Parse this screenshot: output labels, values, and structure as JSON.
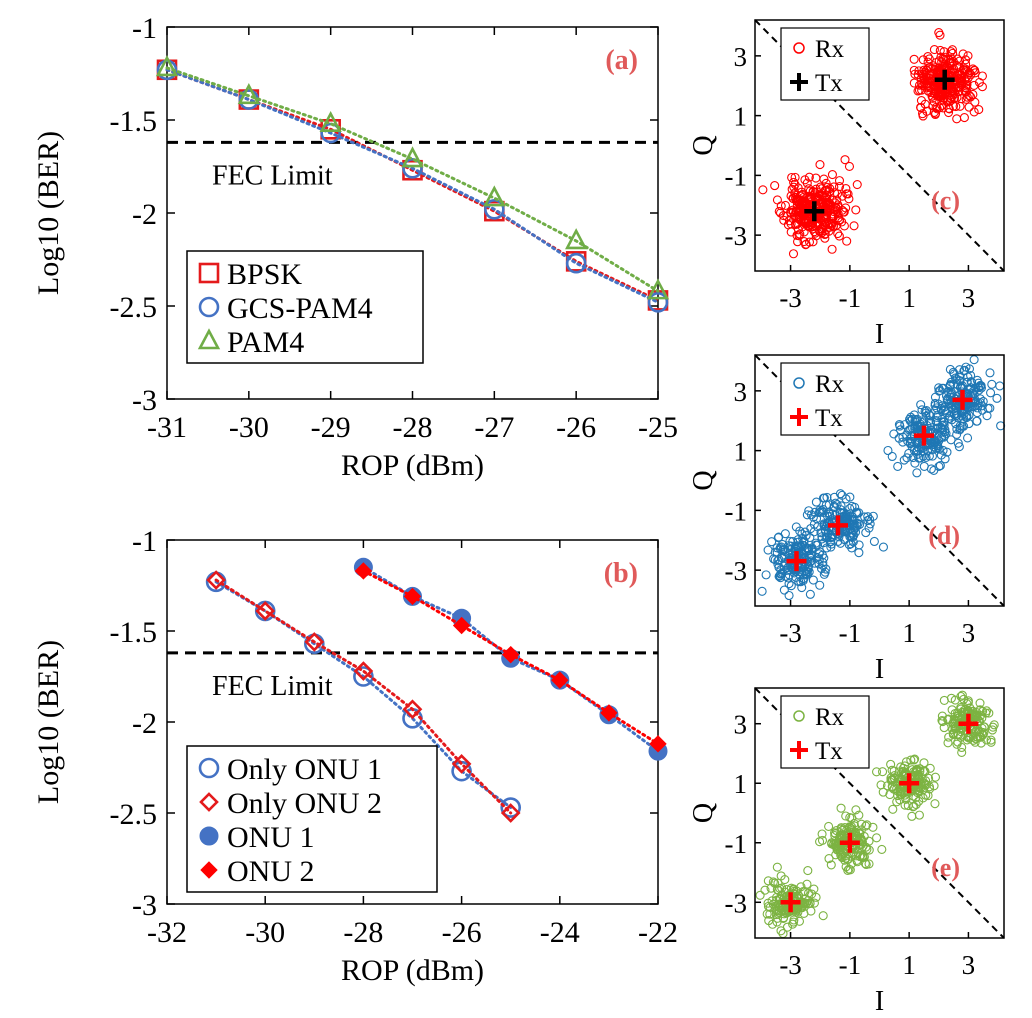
{
  "chart_data": [
    {
      "panel": "a",
      "type": "line",
      "panel_label": "(a)",
      "xlabel": "ROP (dBm)",
      "ylabel": "Log10 (BER)",
      "xlim": [
        -31,
        -25
      ],
      "ylim": [
        -3,
        -1
      ],
      "xticks": [
        "-31",
        "-30",
        "-29",
        "-28",
        "-27",
        "-26",
        "-25"
      ],
      "yticks": [
        "-1",
        "-1.5",
        "-2",
        "-2.5",
        "-3"
      ],
      "fec_limit": -1.62,
      "fec_label": "FEC Limit",
      "legend": "bottom-left",
      "x": [
        -31,
        -30,
        -29,
        -28,
        -27,
        -26,
        -25
      ],
      "series": [
        {
          "name": "BPSK",
          "color": "#e41a1c",
          "marker": "square-open",
          "values": [
            -1.23,
            -1.39,
            -1.55,
            -1.77,
            -1.99,
            -2.26,
            -2.47
          ]
        },
        {
          "name": "GCS-PAM4",
          "color": "#4472c4",
          "marker": "circle-open",
          "values": [
            -1.23,
            -1.39,
            -1.57,
            -1.76,
            -1.98,
            -2.27,
            -2.48
          ]
        },
        {
          "name": "PAM4",
          "color": "#70ad47",
          "marker": "triangle-open",
          "values": [
            -1.22,
            -1.37,
            -1.52,
            -1.71,
            -1.92,
            -2.15,
            -2.42
          ]
        }
      ]
    },
    {
      "panel": "b",
      "type": "line",
      "panel_label": "(b)",
      "xlabel": "ROP (dBm)",
      "ylabel": "Log10 (BER)",
      "xlim": [
        -32,
        -22
      ],
      "ylim": [
        -3,
        -1
      ],
      "xticks": [
        "-32",
        "-30",
        "-28",
        "-26",
        "-24",
        "-22"
      ],
      "yticks": [
        "-1",
        "-1.5",
        "-2",
        "-2.5",
        "-3"
      ],
      "fec_limit": -1.62,
      "fec_label": "FEC Limit",
      "legend": "bottom-left",
      "series": [
        {
          "name": "Only ONU 1",
          "color": "#4472c4",
          "marker": "circle-open",
          "x": [
            -31,
            -30,
            -29,
            -28,
            -27,
            -26,
            -25
          ],
          "values": [
            -1.23,
            -1.39,
            -1.57,
            -1.75,
            -1.98,
            -2.27,
            -2.47
          ]
        },
        {
          "name": "Only ONU 2",
          "color": "#e41a1c",
          "marker": "diamond-open",
          "x": [
            -31,
            -30,
            -29,
            -28,
            -27,
            -26,
            -25
          ],
          "values": [
            -1.22,
            -1.39,
            -1.56,
            -1.72,
            -1.93,
            -2.23,
            -2.5
          ]
        },
        {
          "name": "ONU 1",
          "color": "#4472c4",
          "marker": "circle-filled",
          "x": [
            -28,
            -27,
            -26,
            -25,
            -24,
            -23,
            -22
          ],
          "values": [
            -1.15,
            -1.31,
            -1.43,
            -1.65,
            -1.77,
            -1.96,
            -2.16
          ]
        },
        {
          "name": "ONU 2",
          "color": "#ff0000",
          "marker": "diamond-filled",
          "x": [
            -28,
            -27,
            -26,
            -25,
            -24,
            -23,
            -22
          ],
          "values": [
            -1.17,
            -1.31,
            -1.47,
            -1.63,
            -1.77,
            -1.95,
            -2.12
          ]
        }
      ]
    },
    {
      "panel": "c",
      "type": "scatter",
      "panel_label": "(c)",
      "xlabel": "I",
      "ylabel": "Q",
      "xlim": [
        -4.2,
        4.2
      ],
      "ylim": [
        -4.2,
        4.2
      ],
      "xticks": [
        "-3",
        "-1",
        "1",
        "3"
      ],
      "yticks": [
        "3",
        "1",
        "-1",
        "-3"
      ],
      "legend": "top-left",
      "rx_label": "Rx",
      "tx_label": "Tx",
      "rx_color": "#ff0000",
      "tx_color": "#000000",
      "rx_points_per_cluster": 300,
      "spread": 0.5,
      "tx_points": [
        [
          -2.2,
          -2.2
        ],
        [
          2.2,
          2.2
        ]
      ],
      "boundary": "diagonal Q = -I"
    },
    {
      "panel": "d",
      "type": "scatter",
      "panel_label": "(d)",
      "xlabel": "I",
      "ylabel": "Q",
      "xlim": [
        -4.2,
        4.2
      ],
      "ylim": [
        -4.2,
        4.2
      ],
      "xticks": [
        "-3",
        "-1",
        "1",
        "3"
      ],
      "yticks": [
        "3",
        "1",
        "-1",
        "-3"
      ],
      "legend": "top-left",
      "rx_label": "Rx",
      "tx_label": "Tx",
      "rx_color": "#1f77b4",
      "tx_color": "#ff0000",
      "rx_points_per_cluster": 170,
      "spread": 0.45,
      "tx_points": [
        [
          -2.8,
          -2.7
        ],
        [
          -1.4,
          -1.5
        ],
        [
          1.5,
          1.5
        ],
        [
          2.8,
          2.7
        ]
      ],
      "boundary": "diagonal Q = -I"
    },
    {
      "panel": "e",
      "type": "scatter",
      "panel_label": "(e)",
      "xlabel": "I",
      "ylabel": "Q",
      "xlim": [
        -4.2,
        4.2
      ],
      "ylim": [
        -4.2,
        4.2
      ],
      "xticks": [
        "-3",
        "-1",
        "1",
        "3"
      ],
      "yticks": [
        "3",
        "1",
        "-1",
        "-3"
      ],
      "legend": "top-left",
      "rx_label": "Rx",
      "tx_label": "Tx",
      "rx_color": "#7cb342",
      "tx_color": "#ff0000",
      "rx_points_per_cluster": 150,
      "spread": 0.38,
      "tx_points": [
        [
          -3,
          -3
        ],
        [
          -1,
          -1
        ],
        [
          1,
          1
        ],
        [
          3,
          3
        ]
      ],
      "boundary": "diagonal Q = -I"
    }
  ]
}
